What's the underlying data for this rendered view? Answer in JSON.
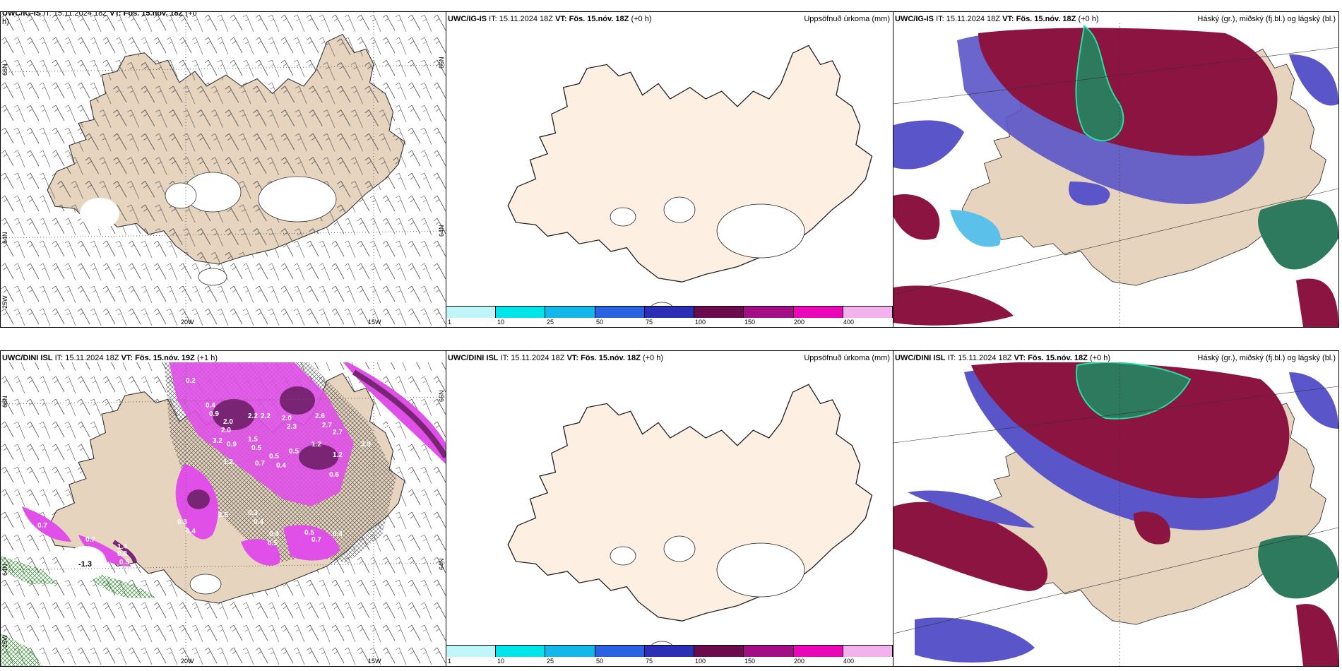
{
  "panels": {
    "top_left": {
      "model": "UWC/IG-IS",
      "it_label": "IT:",
      "it_value": "15.11.2024 18Z",
      "vt_label": "VT:",
      "vt_value": "Fös. 15.nóv. 18Z",
      "lead": "(+0",
      "lead_cont": "h)"
    },
    "top_mid": {
      "model": "UWC/IG-IS",
      "it_label": "IT:",
      "it_value": "15.11.2024 18Z",
      "vt_label": "VT:",
      "vt_value": "Fös. 15.nóv. 18Z",
      "lead": "(+0 h)",
      "right_title": "Uppsöfnuð úrkoma (mm)"
    },
    "top_right": {
      "model": "UWC/IG-IS",
      "it_label": "IT:",
      "it_value": "15.11.2024 18Z",
      "vt_label": "VT:",
      "vt_value": "Fös. 15.nóv. 18Z",
      "lead": "(+0 h)",
      "right_title": "Háský (gr.), miðský (fj.bl.) og lágský (bl.)"
    },
    "bot_left": {
      "model": "UWC/DINI ISL",
      "it_label": "IT:",
      "it_value": "15.11.2024 18Z",
      "vt_label": "VT:",
      "vt_value": "Fös. 15.nóv. 19Z",
      "lead": "(+1 h)"
    },
    "bot_mid": {
      "model": "UWC/DINI ISL",
      "it_label": "IT:",
      "it_value": "15.11.2024 18Z",
      "vt_label": "VT:",
      "vt_value": "Fös. 15.nóv. 18Z",
      "lead": "(+0 h)",
      "right_title": "Uppsöfnuð úrkoma (mm)"
    },
    "bot_right": {
      "model": "UWC/DINI ISL",
      "it_label": "IT:",
      "it_value": "15.11.2024 18Z",
      "vt_label": "VT:",
      "vt_value": "Fös. 15.nóv. 18Z",
      "lead": "(+0 h)",
      "right_title": "Háský (gr.), miðský (fj.bl.) og lágský (bl.)"
    }
  },
  "axes": {
    "lat_66": "66N",
    "lat_64": "64N",
    "lon_20": "20W",
    "lon_15": "15W",
    "lon_25": "25W"
  },
  "colorbar": {
    "labels": [
      "1",
      "10",
      "25",
      "50",
      "75",
      "100",
      "150",
      "200",
      "400"
    ],
    "colors": [
      "#bff6f9",
      "#00e5ea",
      "#13b7ea",
      "#2a62e2",
      "#2b2fb5",
      "#6b0a4c",
      "#a30d86",
      "#ea07b8",
      "#f3b2ee"
    ]
  },
  "precip_values": [
    {
      "v": "0.2"
    },
    {
      "v": "0.4"
    },
    {
      "v": "0.9"
    },
    {
      "v": "2.0"
    },
    {
      "v": "2.2"
    },
    {
      "v": "2.2"
    },
    {
      "v": "2.0"
    },
    {
      "v": "2.3"
    },
    {
      "v": "2.0"
    },
    {
      "v": "2.6"
    },
    {
      "v": "2.7"
    },
    {
      "v": "2.7"
    },
    {
      "v": "3.2"
    },
    {
      "v": "0.9"
    },
    {
      "v": "1.5"
    },
    {
      "v": "0.5"
    },
    {
      "v": "1.2"
    },
    {
      "v": "1.2"
    },
    {
      "v": "1.2"
    },
    {
      "v": "0.7"
    },
    {
      "v": "0.4"
    },
    {
      "v": "0.5"
    },
    {
      "v": "0.5"
    },
    {
      "v": "0.6"
    },
    {
      "v": "2.5"
    },
    {
      "v": "0.3"
    },
    {
      "v": "0.4"
    },
    {
      "v": "0.4"
    },
    {
      "v": "0.5"
    },
    {
      "v": "0.5"
    },
    {
      "v": "0.7"
    },
    {
      "v": "0.4"
    },
    {
      "v": "0.5"
    },
    {
      "v": "3.9"
    },
    {
      "v": "1.5"
    },
    {
      "v": "0.7"
    },
    {
      "v": "0.7"
    },
    {
      "v": "0.8"
    },
    {
      "v": "0.5"
    },
    {
      "v": "1.4"
    },
    {
      "v": "0.3"
    },
    {
      "v": "0.4"
    }
  ],
  "temp_label": "-1.3",
  "colors": {
    "land_tan": "#e6d4be",
    "land_cream": "#fdf0e3",
    "magenta": "#e050e8",
    "purple_dark": "#7a2475",
    "maroon": "#8c1440",
    "blue_cloud": "#5a55c8",
    "cyan_cloud": "#5bc0ea",
    "green_cloud": "#2e7a5e"
  }
}
